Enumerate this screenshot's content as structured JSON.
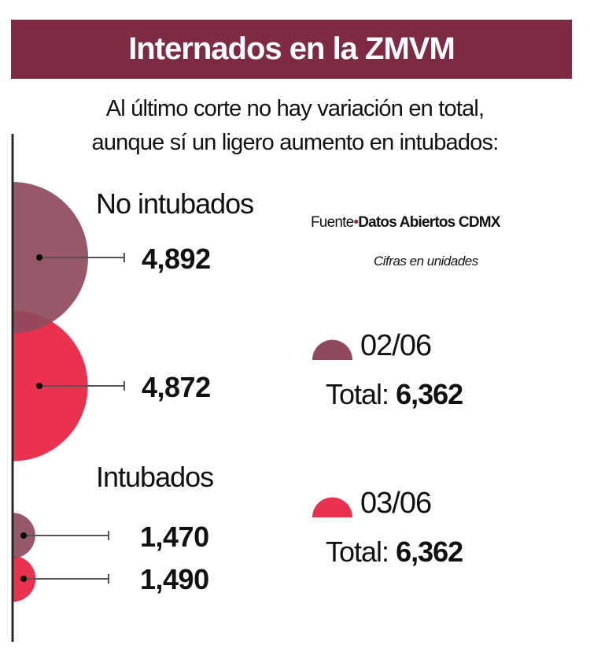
{
  "title": "Internados en la ZMVM",
  "subtitle": [
    "Al último corte no hay variación en total,",
    "aunque sí un ligero aumento en intubados:"
  ],
  "source": {
    "prefix": "Fuente",
    "name": "Datos Abiertos CDMX"
  },
  "units_note": "Cifras en unidades",
  "colors": {
    "banner": "#7d2a42",
    "date_1": "#8e4a5c",
    "date_2": "#e8324f",
    "axis": "#2a2a2a"
  },
  "chart_data": {
    "type": "bubble",
    "title": "Internados en la ZMVM",
    "groups": [
      {
        "label": "No intubados",
        "values": [
          {
            "date": "02/06",
            "value": 4892,
            "value_label": "4,892"
          },
          {
            "date": "03/06",
            "value": 4872,
            "value_label": "4,872"
          }
        ]
      },
      {
        "label": "Intubados",
        "values": [
          {
            "date": "02/06",
            "value": 1470,
            "value_label": "1,470"
          },
          {
            "date": "03/06",
            "value": 1490,
            "value_label": "1,490"
          }
        ]
      }
    ],
    "legend": [
      {
        "date": "02/06",
        "total_label": "Total:",
        "total": "6,362",
        "color": "#8e4a5c"
      },
      {
        "date": "03/06",
        "total_label": "Total:",
        "total": "6,362",
        "color": "#e8324f"
      }
    ]
  }
}
